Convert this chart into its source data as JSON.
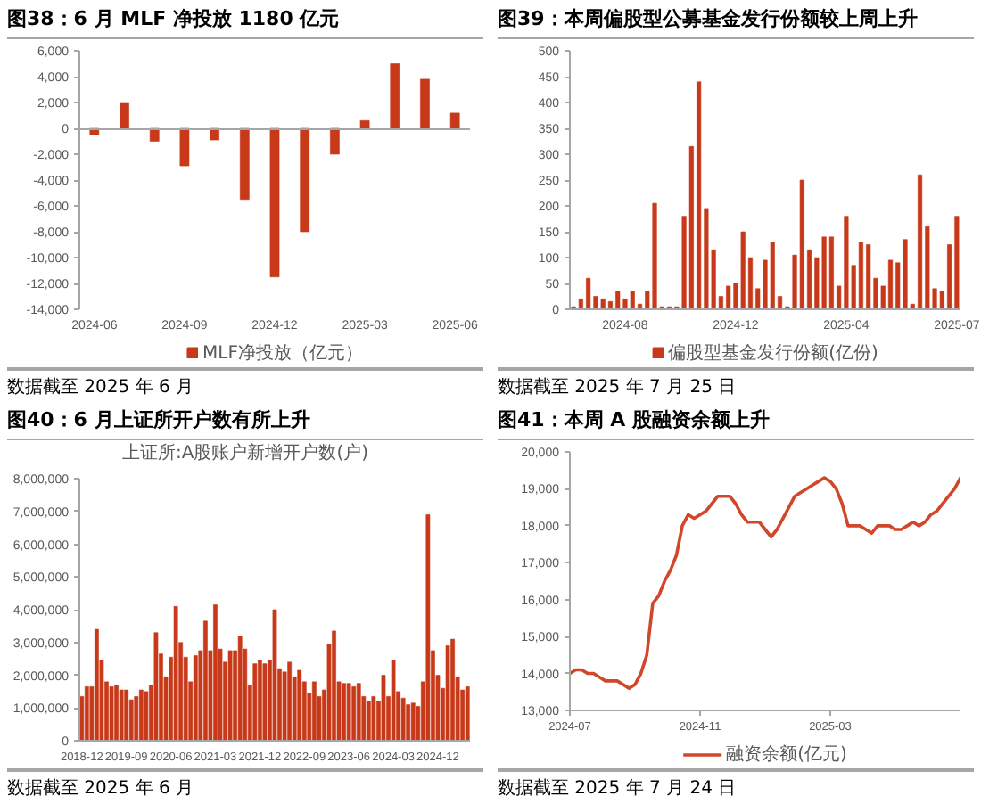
{
  "chart_data": [
    {
      "type": "bar",
      "title": "图38：6 月 MLF 净投放 1180 亿元",
      "categories": [
        "2024-06",
        null,
        null,
        "2024-09",
        null,
        null,
        "2024-12",
        null,
        null,
        "2025-03",
        null,
        null,
        "2025-06"
      ],
      "series": [
        {
          "name": "MLF净投放（亿元）",
          "color": "#c8391a",
          "values": [
            -500,
            2000,
            -1000,
            -2900,
            -900,
            -5500,
            -11500,
            -8000,
            -2000,
            600,
            5000,
            3800,
            1180
          ]
        }
      ],
      "ylim": [
        -14000,
        6000
      ],
      "yticks": [
        {
          "value": -14000,
          "label": "-14,000"
        },
        {
          "value": -12000,
          "label": "-12,000"
        },
        {
          "value": -10000,
          "label": "-10,000"
        },
        {
          "value": -8000,
          "label": "-8,000"
        },
        {
          "value": -6000,
          "label": "-6,000"
        },
        {
          "value": -4000,
          "label": "-4,000"
        },
        {
          "value": -2000,
          "label": "-2,000"
        },
        0,
        {
          "value": 2000,
          "label": "2,000"
        },
        {
          "value": 4000,
          "label": "4,000"
        },
        {
          "value": 6000,
          "label": "6,000"
        }
      ],
      "legend": "bottom",
      "annotations": [
        "数据截至 2025 年 6 月"
      ]
    },
    {
      "type": "bar",
      "title": "图39：本周偏股型公募基金发行份额较上周上升",
      "categories": [
        null,
        null,
        null,
        null,
        null,
        null,
        null,
        "2024-08",
        null,
        null,
        null,
        null,
        null,
        null,
        null,
        null,
        null,
        null,
        null,
        null,
        null,
        null,
        "2024-12",
        null,
        null,
        null,
        null,
        null,
        null,
        null,
        null,
        null,
        null,
        null,
        null,
        null,
        null,
        "2025-04",
        null,
        null,
        null,
        null,
        null,
        null,
        null,
        null,
        null,
        null,
        null,
        null,
        null,
        null,
        "2025-07"
      ],
      "series": [
        {
          "name": "偏股型基金发行份额(亿份)",
          "color": "#c8391a",
          "values": [
            5,
            20,
            60,
            25,
            20,
            15,
            35,
            20,
            35,
            10,
            35,
            205,
            5,
            5,
            5,
            180,
            315,
            440,
            195,
            115,
            25,
            45,
            50,
            150,
            100,
            40,
            95,
            130,
            25,
            5,
            105,
            250,
            115,
            100,
            140,
            140,
            45,
            180,
            85,
            130,
            125,
            60,
            45,
            95,
            90,
            135,
            10,
            260,
            160,
            40,
            35,
            125,
            180
          ]
        }
      ],
      "ylim": [
        0,
        500
      ],
      "yticks": [
        0,
        50,
        100,
        150,
        200,
        250,
        300,
        350,
        400,
        450,
        500
      ],
      "legend": "bottom",
      "annotations": [
        "数据截至 2025 年 7 月 25 日"
      ]
    },
    {
      "type": "bar",
      "title": "图40：6 月上证所开户数有所上升",
      "subtitle": "上证所:A股账户新增开户数(户)",
      "categories": [
        "2018-12",
        null,
        null,
        null,
        null,
        null,
        null,
        null,
        null,
        "2019-09",
        null,
        null,
        null,
        null,
        null,
        null,
        null,
        null,
        "2020-06",
        null,
        null,
        null,
        null,
        null,
        null,
        null,
        null,
        "2021-03",
        null,
        null,
        null,
        null,
        null,
        null,
        null,
        null,
        "2021-12",
        null,
        null,
        null,
        null,
        null,
        null,
        null,
        null,
        "2022-09",
        null,
        null,
        null,
        null,
        null,
        null,
        null,
        null,
        "2023-06",
        null,
        null,
        null,
        null,
        null,
        null,
        null,
        null,
        "2024-03",
        null,
        null,
        null,
        null,
        null,
        null,
        null,
        null,
        "2024-12",
        null,
        null,
        null,
        null,
        null,
        null
      ],
      "series": [
        {
          "color": "#c8391a",
          "values": [
            1350000,
            1650000,
            1650000,
            3400000,
            2450000,
            1800000,
            1650000,
            1700000,
            1550000,
            1550000,
            1250000,
            1350000,
            1550000,
            1500000,
            1700000,
            3300000,
            2650000,
            1950000,
            2550000,
            4100000,
            3000000,
            2550000,
            1800000,
            2600000,
            2750000,
            3650000,
            2750000,
            4150000,
            2800000,
            2400000,
            2750000,
            2750000,
            3200000,
            2800000,
            1700000,
            2350000,
            2450000,
            2350000,
            2450000,
            4000000,
            2200000,
            2100000,
            2400000,
            1950000,
            2150000,
            1800000,
            1450000,
            1800000,
            1350000,
            1550000,
            2950000,
            3350000,
            1800000,
            1750000,
            1750000,
            1650000,
            1750000,
            1350000,
            1200000,
            1350000,
            1200000,
            2000000,
            1350000,
            2450000,
            1500000,
            1300000,
            1100000,
            1150000,
            1050000,
            1800000,
            6900000,
            2750000,
            2000000,
            1600000,
            2900000,
            3100000,
            1950000,
            1550000,
            1650000
          ]
        }
      ],
      "ylim": [
        0,
        8000000
      ],
      "yticks": [
        0,
        {
          "value": 1000000,
          "label": "1,000,000"
        },
        {
          "value": 2000000,
          "label": "2,000,000"
        },
        {
          "value": 3000000,
          "label": "3,000,000"
        },
        {
          "value": 4000000,
          "label": "4,000,000"
        },
        {
          "value": 5000000,
          "label": "5,000,000"
        },
        {
          "value": 6000000,
          "label": "6,000,000"
        },
        {
          "value": 7000000,
          "label": "7,000,000"
        },
        {
          "value": 8000000,
          "label": "8,000,000"
        }
      ],
      "annotations": [
        "数据截至 2025 年 6 月"
      ]
    },
    {
      "type": "line",
      "title": "图41：本周 A 股融资余额上升",
      "categories": [
        "2024-07",
        null,
        null,
        null,
        null,
        null,
        null,
        null,
        null,
        null,
        null,
        null,
        null,
        null,
        null,
        null,
        null,
        null,
        null,
        null,
        null,
        null,
        "2024-11",
        null,
        null,
        null,
        null,
        null,
        null,
        null,
        null,
        null,
        null,
        null,
        null,
        null,
        null,
        null,
        null,
        null,
        null,
        null,
        null,
        null,
        "2025-03",
        null,
        null,
        null,
        null,
        null,
        null,
        null,
        null,
        null,
        null,
        null,
        null,
        null,
        null,
        null,
        null,
        null,
        null,
        null,
        null,
        null,
        null
      ],
      "series": [
        {
          "name": "融资余额(亿元)",
          "color": "#d2462a",
          "values": [
            14000,
            14100,
            14100,
            14000,
            14000,
            13900,
            13800,
            13800,
            13800,
            13700,
            13600,
            13700,
            14000,
            14500,
            15900,
            16100,
            16500,
            16800,
            17200,
            18000,
            18300,
            18200,
            18300,
            18400,
            18600,
            18800,
            18800,
            18800,
            18600,
            18300,
            18100,
            18100,
            18100,
            17900,
            17700,
            17900,
            18200,
            18500,
            18800,
            18900,
            19000,
            19100,
            19200,
            19300,
            19200,
            19000,
            18600,
            18000,
            18000,
            18000,
            17900,
            17800,
            18000,
            18000,
            18000,
            17900,
            17900,
            18000,
            18100,
            18000,
            18100,
            18300,
            18400,
            18600,
            18800,
            19000,
            19300
          ]
        }
      ],
      "ylim": [
        13000,
        20000
      ],
      "yticks": [
        {
          "value": 13000,
          "label": "13,000"
        },
        {
          "value": 14000,
          "label": "14,000"
        },
        {
          "value": 15000,
          "label": "15,000"
        },
        {
          "value": 16000,
          "label": "16,000"
        },
        {
          "value": 17000,
          "label": "17,000"
        },
        {
          "value": 18000,
          "label": "18,000"
        },
        {
          "value": 19000,
          "label": "19,000"
        },
        {
          "value": 20000,
          "label": "20,000"
        }
      ],
      "legend": "bottom",
      "annotations": [
        "数据截至 2025 年 7 月 24 日"
      ]
    }
  ]
}
